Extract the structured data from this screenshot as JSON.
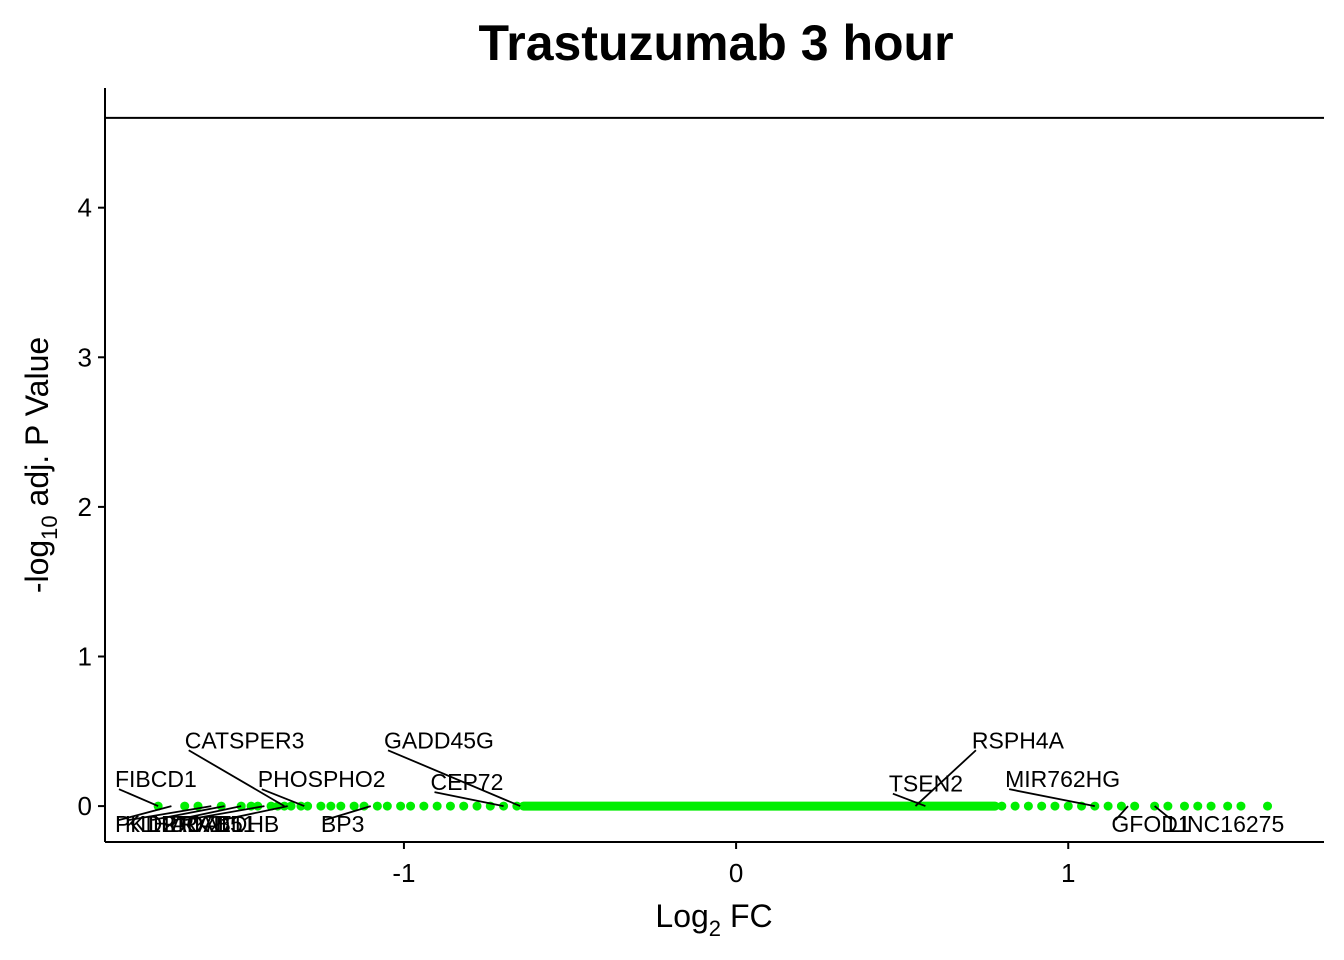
{
  "chart_data": {
    "type": "scatter",
    "title": "Trastuzumab 3 hour",
    "xlabel": {
      "main": "Log",
      "sub": "2",
      "rest": " FC"
    },
    "ylabel": {
      "main": "-log",
      "sub": "10",
      "rest": " adj. P Value"
    },
    "xlim": [
      -1.9,
      1.77
    ],
    "ylim": [
      -0.24,
      4.8
    ],
    "x_ticks": [
      -1,
      0,
      1
    ],
    "y_ticks": [
      0,
      1,
      2,
      3,
      4
    ],
    "threshold_y": 4.6,
    "point_color": "#00ee00",
    "grid": false,
    "points": [
      {
        "x": -1.74,
        "y": 0
      },
      {
        "x": -1.66,
        "y": 0
      },
      {
        "x": -1.62,
        "y": 0
      },
      {
        "x": -1.55,
        "y": 0
      },
      {
        "x": -1.49,
        "y": 0
      },
      {
        "x": -1.46,
        "y": 0
      },
      {
        "x": -1.44,
        "y": 0
      },
      {
        "x": -1.4,
        "y": 0
      },
      {
        "x": -1.38,
        "y": 0
      },
      {
        "x": -1.36,
        "y": 0
      },
      {
        "x": -1.34,
        "y": 0
      },
      {
        "x": -1.31,
        "y": 0
      },
      {
        "x": -1.29,
        "y": 0
      },
      {
        "x": -1.25,
        "y": 0
      },
      {
        "x": -1.22,
        "y": 0
      },
      {
        "x": -1.19,
        "y": 0
      },
      {
        "x": -1.15,
        "y": 0
      },
      {
        "x": -1.12,
        "y": 0
      },
      {
        "x": -1.08,
        "y": 0
      },
      {
        "x": -1.05,
        "y": 0
      },
      {
        "x": -1.01,
        "y": 0
      },
      {
        "x": -0.98,
        "y": 0
      },
      {
        "x": -0.94,
        "y": 0
      },
      {
        "x": -0.9,
        "y": 0
      },
      {
        "x": -0.86,
        "y": 0
      },
      {
        "x": -0.82,
        "y": 0
      },
      {
        "x": -0.78,
        "y": 0
      },
      {
        "x": -0.74,
        "y": 0
      },
      {
        "x": -0.7,
        "y": 0
      },
      {
        "x": -0.66,
        "y": 0
      },
      {
        "x": 0.8,
        "y": 0
      },
      {
        "x": 0.84,
        "y": 0
      },
      {
        "x": 0.88,
        "y": 0
      },
      {
        "x": 0.92,
        "y": 0
      },
      {
        "x": 0.96,
        "y": 0
      },
      {
        "x": 1.0,
        "y": 0
      },
      {
        "x": 1.04,
        "y": 0
      },
      {
        "x": 1.08,
        "y": 0
      },
      {
        "x": 1.12,
        "y": 0
      },
      {
        "x": 1.16,
        "y": 0
      },
      {
        "x": 1.2,
        "y": 0
      },
      {
        "x": 1.26,
        "y": 0
      },
      {
        "x": 1.3,
        "y": 0
      },
      {
        "x": 1.35,
        "y": 0
      },
      {
        "x": 1.39,
        "y": 0
      },
      {
        "x": 1.43,
        "y": 0
      },
      {
        "x": 1.48,
        "y": 0
      },
      {
        "x": 1.52,
        "y": 0
      },
      {
        "x": 1.6,
        "y": 0
      }
    ],
    "dense_band": {
      "from": -0.64,
      "to": 0.78
    },
    "labels": [
      {
        "text": "FIBCD1",
        "x": -1.74,
        "lx": -1.87,
        "ly": 0.18
      },
      {
        "text": "PKD2",
        "x": -1.7,
        "lx": -1.87,
        "ly": -0.12
      },
      {
        "text": "KLHDC7B",
        "x": -1.58,
        "lx": -1.84,
        "ly": -0.12
      },
      {
        "text": "LRRK2",
        "x": -1.54,
        "lx": -1.77,
        "ly": -0.12
      },
      {
        "text": "ADAT1",
        "x": -1.49,
        "lx": -1.7,
        "ly": -0.12
      },
      {
        "text": "CATSPER3",
        "x": -1.36,
        "lx": -1.66,
        "ly": 0.44
      },
      {
        "text": "RAD51",
        "x": -1.42,
        "lx": -1.67,
        "ly": -0.12
      },
      {
        "text": "LDHB",
        "x": -1.35,
        "lx": -1.56,
        "ly": -0.12
      },
      {
        "text": "PHOSPHO2",
        "x": -1.3,
        "lx": -1.44,
        "ly": 0.18
      },
      {
        "text": "BP3",
        "x": -1.1,
        "lx": -1.25,
        "ly": -0.12
      },
      {
        "text": "GADD45G",
        "x": -0.65,
        "lx": -1.06,
        "ly": 0.44
      },
      {
        "text": "CEP72",
        "x": -0.7,
        "lx": -0.92,
        "ly": 0.16
      },
      {
        "text": "RSPH4A",
        "x": 0.54,
        "lx": 0.71,
        "ly": 0.44
      },
      {
        "text": "TSEN2",
        "x": 0.57,
        "lx": 0.46,
        "ly": 0.15
      },
      {
        "text": "MIR762HG",
        "x": 1.08,
        "lx": 0.81,
        "ly": 0.18
      },
      {
        "text": "GFOD1",
        "x": 1.18,
        "lx": 1.13,
        "ly": -0.12
      },
      {
        "text": "LINC16275",
        "x": 1.26,
        "lx": 1.3,
        "ly": -0.12
      }
    ]
  }
}
